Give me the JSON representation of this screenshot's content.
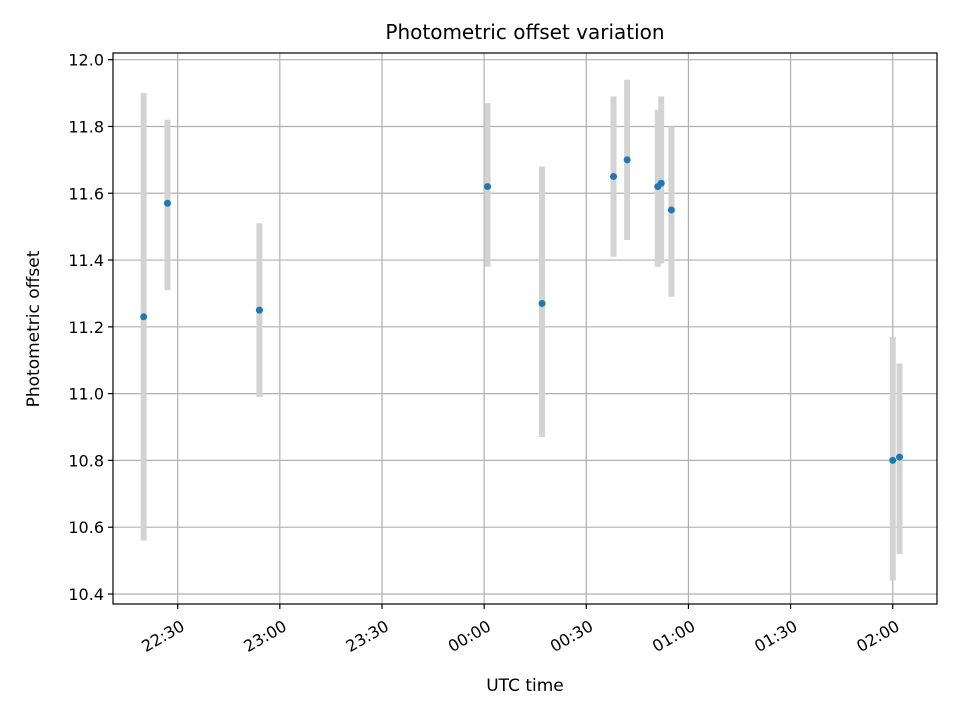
{
  "chart_data": {
    "type": "scatter",
    "title": "Photometric offset variation",
    "xlabel": "UTC time",
    "ylabel": "Photometric offset",
    "ylim": [
      10.37,
      12.02
    ],
    "xlim": [
      "22:11",
      "02:13"
    ],
    "grid": true,
    "yticks": [
      "10.4",
      "10.6",
      "10.8",
      "11.0",
      "11.2",
      "11.4",
      "11.6",
      "11.8",
      "12.0"
    ],
    "xticks": [
      "22:30",
      "23:00",
      "23:30",
      "00:00",
      "00:30",
      "01:00",
      "01:30",
      "02:00"
    ],
    "point_color": "#1f77b4",
    "errorbar_color": "#d3d3d3",
    "points": [
      {
        "x": "22:20",
        "y": 11.23,
        "ymin": 10.56,
        "ymax": 11.9
      },
      {
        "x": "22:27",
        "y": 11.57,
        "ymin": 11.31,
        "ymax": 11.82
      },
      {
        "x": "22:54",
        "y": 11.25,
        "ymin": 10.99,
        "ymax": 11.51
      },
      {
        "x": "00:01",
        "y": 11.62,
        "ymin": 11.38,
        "ymax": 11.87
      },
      {
        "x": "00:17",
        "y": 11.27,
        "ymin": 10.87,
        "ymax": 11.68
      },
      {
        "x": "00:38",
        "y": 11.65,
        "ymin": 11.41,
        "ymax": 11.89
      },
      {
        "x": "00:42",
        "y": 11.7,
        "ymin": 11.46,
        "ymax": 11.94
      },
      {
        "x": "00:51",
        "y": 11.62,
        "ymin": 11.38,
        "ymax": 11.85
      },
      {
        "x": "00:52",
        "y": 11.63,
        "ymin": 11.39,
        "ymax": 11.89
      },
      {
        "x": "00:55",
        "y": 11.55,
        "ymin": 11.29,
        "ymax": 11.8
      },
      {
        "x": "02:00",
        "y": 10.8,
        "ymin": 10.44,
        "ymax": 11.17
      },
      {
        "x": "02:02",
        "y": 10.81,
        "ymin": 10.52,
        "ymax": 11.09
      }
    ]
  }
}
